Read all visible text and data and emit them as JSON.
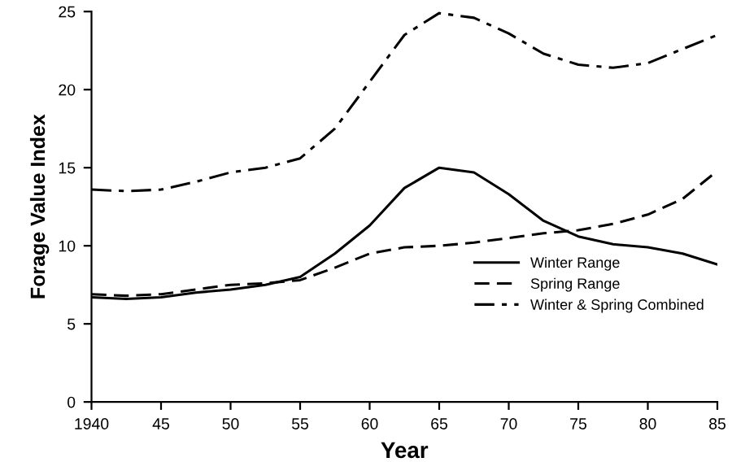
{
  "chart_data": {
    "type": "line",
    "xlabel": "Year",
    "ylabel": "Forage Value Index",
    "x": [
      1940,
      1942.5,
      1945,
      1947.5,
      1950,
      1952.5,
      1955,
      1957.5,
      1960,
      1962.5,
      1965,
      1967.5,
      1970,
      1972.5,
      1975,
      1977.5,
      1980,
      1982.5,
      1985
    ],
    "series": [
      {
        "name": "Winter Range",
        "color": "#000000",
        "line_style": "solid",
        "values": [
          6.7,
          6.6,
          6.7,
          7.0,
          7.2,
          7.5,
          8.0,
          9.5,
          11.3,
          13.7,
          15.0,
          14.7,
          13.3,
          11.6,
          10.6,
          10.1,
          9.9,
          9.5,
          8.8
        ]
      },
      {
        "name": "Spring Range",
        "color": "#000000",
        "line_style": "dashed",
        "values": [
          6.9,
          6.8,
          6.9,
          7.2,
          7.5,
          7.6,
          7.8,
          8.6,
          9.5,
          9.9,
          10.0,
          10.2,
          10.5,
          10.8,
          11.0,
          11.4,
          12.0,
          13.0,
          14.8
        ]
      },
      {
        "name": "Winter & Spring Combined",
        "color": "#000000",
        "line_style": "dashdot",
        "values": [
          13.6,
          13.5,
          13.6,
          14.1,
          14.7,
          15.0,
          15.6,
          17.5,
          20.5,
          23.5,
          24.9,
          24.6,
          23.6,
          22.3,
          21.6,
          21.4,
          21.7,
          22.6,
          23.5
        ]
      }
    ],
    "xlim": [
      1940,
      1985
    ],
    "xticks": [
      1940,
      {
        "value": 1945,
        "label": "45"
      },
      {
        "value": 1950,
        "label": "50"
      },
      {
        "value": 1955,
        "label": "55"
      },
      {
        "value": 1960,
        "label": "60"
      },
      {
        "value": 1965,
        "label": "65"
      },
      {
        "value": 1970,
        "label": "70"
      },
      {
        "value": 1975,
        "label": "75"
      },
      {
        "value": 1980,
        "label": "80"
      },
      {
        "value": 1985,
        "label": "85"
      }
    ],
    "ylim": [
      0,
      25
    ],
    "yticks": [
      0,
      5,
      10,
      15,
      20,
      25
    ],
    "grid": false,
    "legend": "right",
    "marker": "none"
  }
}
